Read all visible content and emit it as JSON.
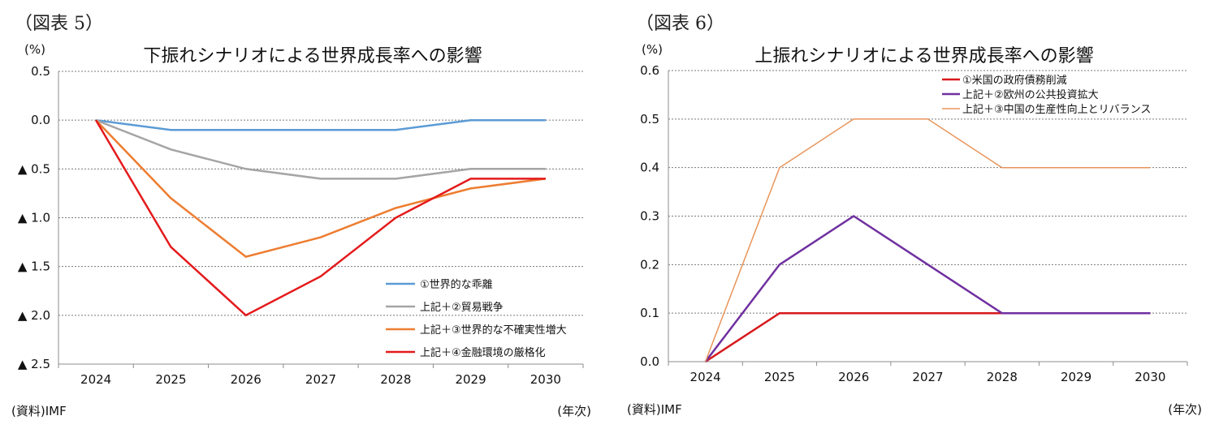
{
  "chart_data": [
    {
      "type": "line",
      "figure_label": "（図表 5）",
      "title": "下振れシナリオによる世界成長率への影響",
      "ylabel": "(%)",
      "xlabel": "(年次)",
      "source": "(資料)IMF",
      "categories": [
        "2024",
        "2025",
        "2026",
        "2027",
        "2028",
        "2029",
        "2030"
      ],
      "ylim": [
        -2.5,
        0.5
      ],
      "ytick_values": [
        0.5,
        0.0,
        -0.5,
        -1.0,
        -1.5,
        -2.0,
        -2.5
      ],
      "ytick_labels": [
        "0.5",
        "0.0",
        "▲ 0.5",
        "▲ 1.0",
        "▲ 1.5",
        "▲ 2.0",
        "▲ 2.5"
      ],
      "legend_position": "bottom-right",
      "series": [
        {
          "name": "①世界的な乖離",
          "color": "#5b9bd5",
          "width": 2.5,
          "values": [
            0.0,
            -0.1,
            -0.1,
            -0.1,
            -0.1,
            0.0,
            0.0
          ]
        },
        {
          "name": "上記＋②貿易戦争",
          "color": "#a5a5a5",
          "width": 2.5,
          "values": [
            0.0,
            -0.3,
            -0.5,
            -0.6,
            -0.6,
            -0.5,
            -0.5
          ]
        },
        {
          "name": "上記＋③世界的な不確実性増大",
          "color": "#ed7d31",
          "width": 2.5,
          "values": [
            0.0,
            -0.8,
            -1.4,
            -1.2,
            -0.9,
            -0.7,
            -0.6
          ]
        },
        {
          "name": "上記＋④金融環境の厳格化",
          "color": "#e41a1c",
          "width": 2.5,
          "values": [
            0.0,
            -1.3,
            -2.0,
            -1.6,
            -1.0,
            -0.6,
            -0.6
          ]
        }
      ]
    },
    {
      "type": "line",
      "figure_label": "（図表 6）",
      "title": "上振れシナリオによる世界成長率への影響",
      "ylabel": "(%)",
      "xlabel": "(年次)",
      "source": "(資料)IMF",
      "categories": [
        "2024",
        "2025",
        "2026",
        "2027",
        "2028",
        "2029",
        "2030"
      ],
      "ylim": [
        0.0,
        0.6
      ],
      "ytick_values": [
        0.6,
        0.5,
        0.4,
        0.3,
        0.2,
        0.1,
        0.0
      ],
      "ytick_labels": [
        "0.6",
        "0.5",
        "0.4",
        "0.3",
        "0.2",
        "0.1",
        "0.0"
      ],
      "legend_position": "top-right",
      "series": [
        {
          "name": "①米国の政府債務削減",
          "color": "#d7191c",
          "width": 2.5,
          "values": [
            0.0,
            0.1,
            0.1,
            0.1,
            0.1,
            0.1,
            0.1
          ]
        },
        {
          "name": "上記＋②欧州の公共投資拡大",
          "color": "#7030a0",
          "width": 2.5,
          "values": [
            0.0,
            0.2,
            0.3,
            0.2,
            0.1,
            0.1,
            0.1
          ]
        },
        {
          "name": "上記＋③中国の生産性向上とリバランス",
          "color": "#e8955b",
          "width": 1.5,
          "values": [
            0.0,
            0.4,
            0.5,
            0.5,
            0.4,
            0.4,
            0.4
          ]
        }
      ]
    }
  ]
}
